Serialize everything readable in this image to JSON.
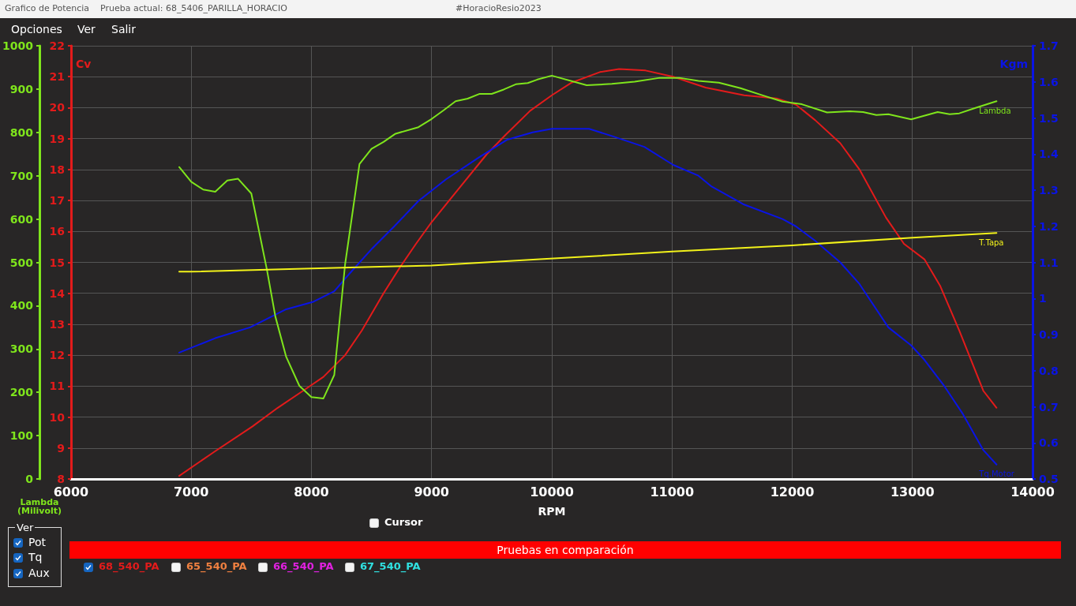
{
  "chart_data": {
    "type": "line",
    "title": "Grafico de Potencia",
    "subtitle": "Prueba actual: 68_5406_PARILLA_HORACIO",
    "xlabel": "RPM",
    "ylabel": "Cv",
    "y2label": "Kgm",
    "y3label": "Lambda (Milivolt)",
    "xlim": [
      6000,
      14000
    ],
    "xticks": [
      6000,
      7000,
      8000,
      9000,
      10000,
      11000,
      12000,
      13000,
      14000
    ],
    "ylim": [
      8,
      22
    ],
    "yticks": [
      8,
      9,
      10,
      11,
      12,
      13,
      14,
      15,
      16,
      17,
      18,
      19,
      20,
      21,
      22
    ],
    "y2lim": [
      0.5,
      1.7
    ],
    "y2ticks": [
      0.5,
      0.6,
      0.7,
      0.8,
      0.9,
      1,
      1.1,
      1.2,
      1.3,
      1.4,
      1.5,
      1.6,
      1.7
    ],
    "y3lim": [
      0,
      1000
    ],
    "y3ticks": [
      0,
      100,
      200,
      300,
      400,
      500,
      600,
      700,
      800,
      900,
      1000
    ],
    "grid": true,
    "legend": false,
    "marker": "none",
    "line_style": "solid",
    "series": [
      {
        "color": "#e31b1b",
        "x": [
          6900,
          7200,
          7510,
          7720,
          7950,
          8100,
          8280,
          8420,
          8600,
          8730,
          8870,
          9000,
          9230,
          9460,
          9610,
          9820,
          10000,
          10160,
          10400,
          10560,
          10780,
          11010,
          11280,
          11600,
          11870,
          12030,
          12190,
          12400,
          12560,
          12780,
          12930,
          13100,
          13230,
          13390,
          13590,
          13700
        ],
        "values": [
          8.1,
          8.9,
          9.7,
          10.3,
          10.9,
          11.3,
          12.0,
          12.8,
          14.0,
          14.8,
          15.6,
          16.3,
          17.4,
          18.5,
          19.1,
          19.9,
          20.4,
          20.8,
          21.15,
          21.25,
          21.2,
          21.0,
          20.65,
          20.4,
          20.3,
          20.1,
          19.6,
          18.85,
          18.0,
          16.45,
          15.6,
          15.1,
          14.25,
          12.8,
          10.85,
          10.3
        ]
      },
      {
        "name": "Tq.Motor",
        "axis": "y2",
        "color": "#0a14e6",
        "x": [
          6900,
          7200,
          7490,
          7790,
          8010,
          8190,
          8320,
          8510,
          8690,
          8890,
          9120,
          9390,
          9630,
          9840,
          10000,
          10100,
          10310,
          10500,
          10770,
          11010,
          11220,
          11330,
          11600,
          11920,
          12030,
          12190,
          12400,
          12560,
          12800,
          12990,
          13100,
          13260,
          13420,
          13590,
          13700
        ],
        "values": [
          0.85,
          0.89,
          0.92,
          0.97,
          0.99,
          1.02,
          1.07,
          1.14,
          1.2,
          1.27,
          1.33,
          1.39,
          1.44,
          1.46,
          1.47,
          1.47,
          1.47,
          1.45,
          1.42,
          1.37,
          1.34,
          1.31,
          1.26,
          1.22,
          1.2,
          1.16,
          1.1,
          1.04,
          0.92,
          0.87,
          0.83,
          0.76,
          0.68,
          0.58,
          0.54
        ]
      },
      {
        "name": "Lambda",
        "axis": "y3",
        "color": "#7fe51c",
        "x": [
          6900,
          7000,
          7100,
          7200,
          7300,
          7390,
          7500,
          7630,
          7700,
          7790,
          7900,
          8000,
          8100,
          8190,
          8280,
          8400,
          8500,
          8600,
          8700,
          8890,
          9000,
          9100,
          9200,
          9300,
          9400,
          9500,
          9600,
          9700,
          9800,
          9880,
          10000,
          10290,
          10500,
          10690,
          10900,
          11060,
          11220,
          11390,
          11570,
          11760,
          11920,
          12080,
          12290,
          12480,
          12590,
          12700,
          12800,
          12990,
          13210,
          13310,
          13390,
          13520,
          13700
        ],
        "values": [
          720,
          686,
          668,
          663,
          689,
          693,
          659,
          483,
          375,
          282,
          215,
          189,
          186,
          240,
          495,
          727,
          762,
          778,
          797,
          812,
          831,
          851,
          872,
          878,
          889,
          889,
          899,
          911,
          914,
          922,
          931,
          909,
          912,
          917,
          926,
          926,
          919,
          915,
          902,
          885,
          871,
          865,
          846,
          849,
          847,
          840,
          842,
          830,
          847,
          842,
          844,
          856,
          872
        ]
      },
      {
        "name": "T.Tapa",
        "color": "#f2f21a",
        "x": [
          6900,
          7000,
          8000,
          9000,
          9900,
          11000,
          12000,
          13000,
          13700
        ],
        "values": [
          14.7,
          14.7,
          14.8,
          14.9,
          15.1,
          15.35,
          15.55,
          15.8,
          15.95
        ]
      }
    ],
    "annotations": [
      "#HoracioResio2023",
      "Opciones",
      "Ver",
      "Salir",
      "Cursor",
      "Ver",
      "Pot",
      "Tq",
      "Aux",
      "Pruebas en comparación",
      "68_540_PA",
      "65_540_PA",
      "66_540_PA",
      "67_540_PA"
    ]
  }
}
